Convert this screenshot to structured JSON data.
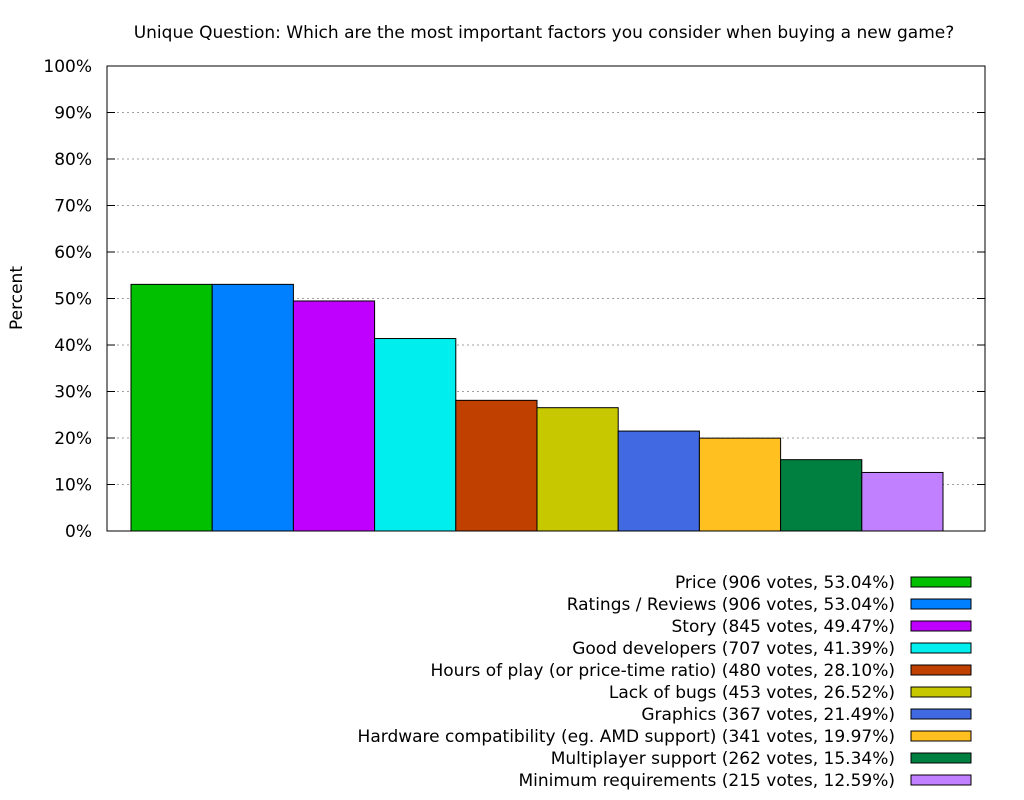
{
  "chart_data": {
    "type": "bar",
    "title": "Unique Question: Which are the most important factors you consider when buying a new game?",
    "ylabel": "Percent",
    "xlabel": "",
    "ylim": [
      0,
      100
    ],
    "yticks": [
      "0%",
      "10%",
      "20%",
      "30%",
      "40%",
      "50%",
      "60%",
      "70%",
      "80%",
      "90%",
      "100%"
    ],
    "grid": "horizontal-dotted",
    "legend_position": "bottom-right",
    "series": [
      {
        "label": "Price (906 votes, 53.04%)",
        "value": 53.04,
        "color": "#00c000"
      },
      {
        "label": "Ratings / Reviews (906 votes, 53.04%)",
        "value": 53.04,
        "color": "#0080ff"
      },
      {
        "label": "Story (845 votes, 49.47%)",
        "value": 49.47,
        "color": "#c000ff"
      },
      {
        "label": "Good developers (707 votes, 41.39%)",
        "value": 41.39,
        "color": "#00eeee"
      },
      {
        "label": "Hours of play (or price-time ratio) (480 votes, 28.10%)",
        "value": 28.1,
        "color": "#c04000"
      },
      {
        "label": "Lack of bugs (453 votes, 26.52%)",
        "value": 26.52,
        "color": "#c8c800"
      },
      {
        "label": "Graphics (367 votes, 21.49%)",
        "value": 21.49,
        "color": "#4169e1"
      },
      {
        "label": "Hardware compatibility (eg. AMD support) (341 votes, 19.97%)",
        "value": 19.97,
        "color": "#ffc020"
      },
      {
        "label": "Multiplayer support (262 votes, 15.34%)",
        "value": 15.34,
        "color": "#008040"
      },
      {
        "label": "Minimum requirements (215 votes, 12.59%)",
        "value": 12.59,
        "color": "#c080ff"
      }
    ]
  }
}
